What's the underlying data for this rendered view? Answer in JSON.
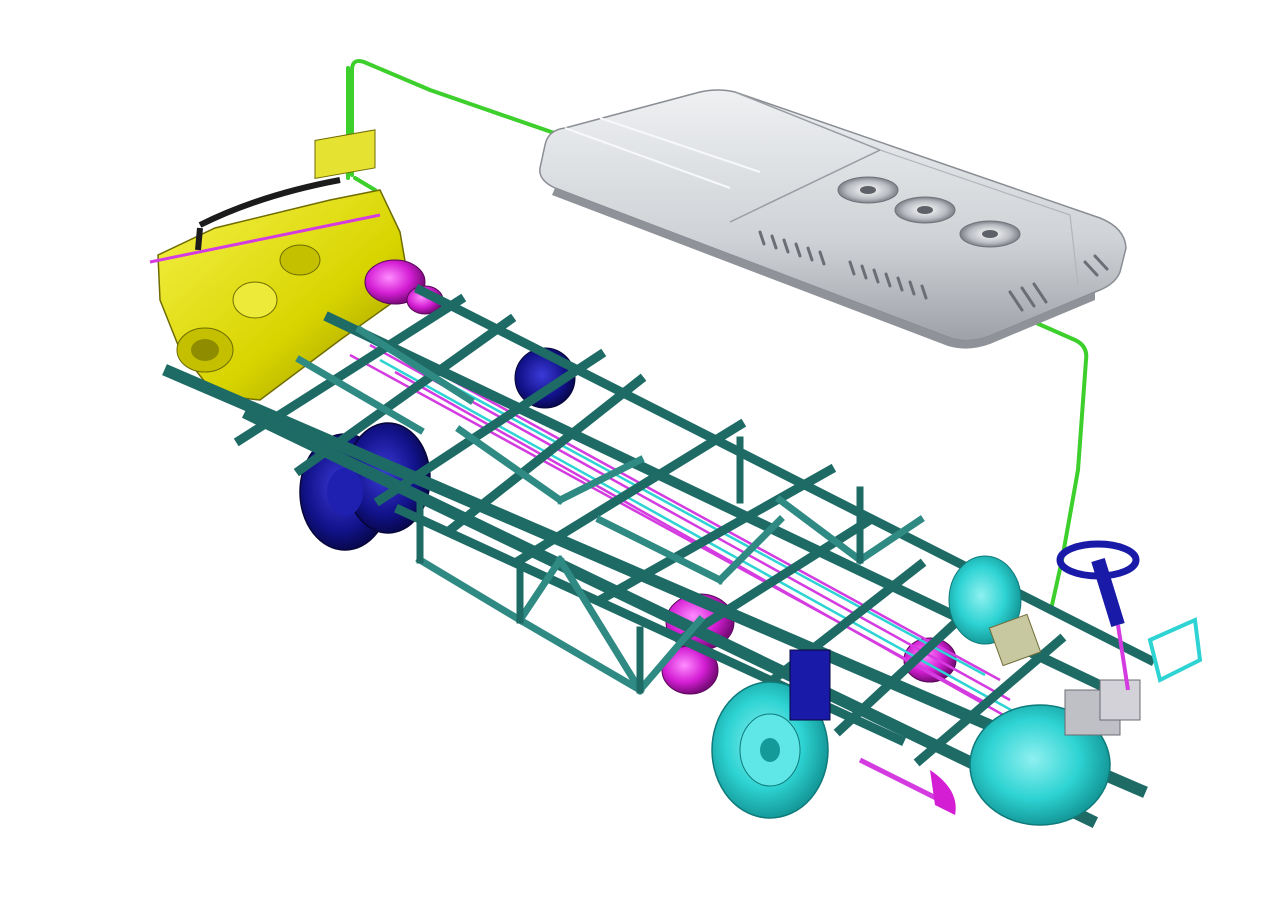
{
  "scene": {
    "background": "#ffffff",
    "colors": {
      "frame": "#1e6b66",
      "frame_light": "#2f8a84",
      "engine": "#d8d400",
      "engine_dark": "#8f8c00",
      "tire_rear": "#12128a",
      "tire_front": "#2ed3d3",
      "tank": "#d41ed4",
      "wiring": "#d43be0",
      "pipe": "#3dcf2b",
      "ac_unit": "#d2d4d8",
      "ac_unit_dark": "#a4a7ad",
      "steering": "#1a1aa8"
    },
    "components": [
      "rooftop-ac-unit",
      "refrigerant-pipe",
      "engine",
      "chassis-frame",
      "rear-wheels",
      "front-wheels",
      "air-tanks",
      "steering-column",
      "wiring-harness"
    ]
  }
}
